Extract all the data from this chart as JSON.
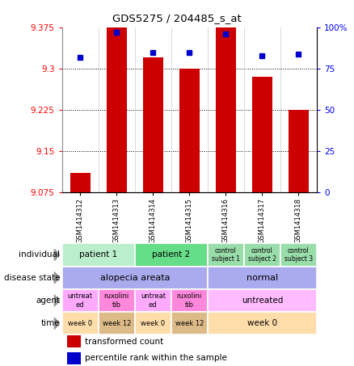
{
  "title": "GDS5275 / 204485_s_at",
  "samples": [
    "GSM1414312",
    "GSM1414313",
    "GSM1414314",
    "GSM1414315",
    "GSM1414316",
    "GSM1414317",
    "GSM1414318"
  ],
  "transformed_count": [
    9.11,
    9.375,
    9.32,
    9.3,
    9.375,
    9.285,
    9.225
  ],
  "percentile_rank": [
    82,
    97,
    85,
    85,
    96,
    83,
    84
  ],
  "ymin": 9.075,
  "ymax": 9.375,
  "yticks": [
    9.075,
    9.15,
    9.225,
    9.3,
    9.375
  ],
  "y2ticks": [
    0,
    25,
    50,
    75,
    100
  ],
  "bar_color": "#cc0000",
  "dot_color": "#0000cc",
  "annotation_rows": [
    {
      "label": "individual",
      "cells": [
        {
          "text": "patient 1",
          "span": 2,
          "color": "#bbeecc",
          "fontsize": 7.5
        },
        {
          "text": "patient 2",
          "span": 2,
          "color": "#66dd88",
          "fontsize": 7.5
        },
        {
          "text": "control\nsubject 1",
          "span": 1,
          "color": "#99ddaa",
          "fontsize": 5.5
        },
        {
          "text": "control\nsubject 2",
          "span": 1,
          "color": "#99ddaa",
          "fontsize": 5.5
        },
        {
          "text": "control\nsubject 3",
          "span": 1,
          "color": "#99ddaa",
          "fontsize": 5.5
        }
      ]
    },
    {
      "label": "disease state",
      "cells": [
        {
          "text": "alopecia areata",
          "span": 4,
          "color": "#aaaaee",
          "fontsize": 8
        },
        {
          "text": "normal",
          "span": 3,
          "color": "#aaaaee",
          "fontsize": 8
        }
      ]
    },
    {
      "label": "agent",
      "cells": [
        {
          "text": "untreat\ned",
          "span": 1,
          "color": "#ffaaff",
          "fontsize": 6
        },
        {
          "text": "ruxolini\ntib",
          "span": 1,
          "color": "#ff88dd",
          "fontsize": 6
        },
        {
          "text": "untreat\ned",
          "span": 1,
          "color": "#ffaaff",
          "fontsize": 6
        },
        {
          "text": "ruxolini\ntib",
          "span": 1,
          "color": "#ff88dd",
          "fontsize": 6
        },
        {
          "text": "untreated",
          "span": 3,
          "color": "#ffbbff",
          "fontsize": 7.5
        }
      ]
    },
    {
      "label": "time",
      "cells": [
        {
          "text": "week 0",
          "span": 1,
          "color": "#ffddaa",
          "fontsize": 6
        },
        {
          "text": "week 12",
          "span": 1,
          "color": "#ddbb88",
          "fontsize": 6
        },
        {
          "text": "week 0",
          "span": 1,
          "color": "#ffddaa",
          "fontsize": 6
        },
        {
          "text": "week 12",
          "span": 1,
          "color": "#ddbb88",
          "fontsize": 6
        },
        {
          "text": "week 0",
          "span": 3,
          "color": "#ffddaa",
          "fontsize": 7.5
        }
      ]
    }
  ],
  "legend": [
    {
      "color": "#cc0000",
      "label": "transformed count"
    },
    {
      "color": "#0000cc",
      "label": "percentile rank within the sample"
    }
  ]
}
